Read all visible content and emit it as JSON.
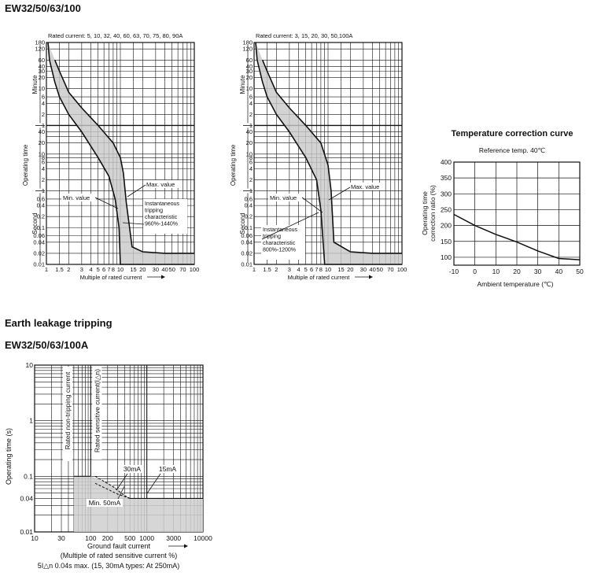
{
  "page": {
    "main_title": "EW32/50/63/100",
    "earth_heading": "Earth leakage tripping",
    "earth_model": "EW32/50/63/100A"
  },
  "chart_data": [
    {
      "type": "area",
      "title": "",
      "subtitle": "Rated current: 5, 10, 32, 40, 60, 63, 70, 75, 80, 90A",
      "xlabel": "Multiple of rated current",
      "ylabel": "Operating time",
      "y_scale": "log",
      "x_scale": "log",
      "xlim": [
        1,
        100
      ],
      "x_ticks": [
        "1",
        "1.5",
        "2",
        "3",
        "4",
        "5",
        "6",
        "7",
        "8",
        "10",
        "15",
        "20",
        "30",
        "40",
        "50",
        "70",
        "100"
      ],
      "y_unit_groups": [
        "Minute",
        "Second"
      ],
      "y_ticks_minute": [
        "180",
        "120",
        "60",
        "40",
        "30",
        "20",
        "10",
        "6",
        "4",
        "2",
        "1"
      ],
      "y_ticks_second": [
        "40",
        "20",
        "10",
        "8",
        "6",
        "4",
        "2",
        "1",
        "0.6",
        "0.4",
        "0.2",
        "0.1",
        "0.06",
        "0.04",
        "0.02",
        "0.01"
      ],
      "annotations": [
        "Max. value",
        "Min. value",
        "Instantaneous tripping characteristic 960%-1440%"
      ],
      "series": [
        {
          "name": "Max. value",
          "x": [
            1.3,
            1.5,
            2,
            3,
            5,
            8,
            10,
            11,
            12,
            14.4,
            20,
            40,
            100
          ],
          "y_seconds": [
            3600,
            1800,
            480,
            180,
            60,
            20,
            8,
            3,
            0.5,
            0.03,
            0.022,
            0.02,
            0.02
          ]
        },
        {
          "name": "Min. value",
          "x": [
            1.05,
            1.1,
            1.3,
            1.5,
            2,
            3,
            5,
            7,
            8.5,
            9.6,
            10,
            20,
            100
          ],
          "y_seconds": [
            10800,
            3600,
            900,
            360,
            120,
            40,
            8,
            2.5,
            0.6,
            0.1,
            0.01,
            0.01,
            0.01
          ]
        }
      ]
    },
    {
      "type": "area",
      "title": "",
      "subtitle": "Rated current: 3, 15, 20, 30, 50,100A",
      "xlabel": "Multiple of rated current",
      "ylabel": "Operating time",
      "y_scale": "log",
      "x_scale": "log",
      "xlim": [
        1,
        100
      ],
      "x_ticks": [
        "1",
        "1.5",
        "2",
        "3",
        "4",
        "5",
        "6",
        "7",
        "8",
        "10",
        "15",
        "20",
        "30",
        "40",
        "50",
        "70",
        "100"
      ],
      "y_unit_groups": [
        "Minute",
        "Second"
      ],
      "y_ticks_minute": [
        "180",
        "120",
        "60",
        "40",
        "30",
        "20",
        "10",
        "6",
        "4",
        "2",
        "1"
      ],
      "y_ticks_second": [
        "40",
        "20",
        "10",
        "8",
        "6",
        "4",
        "2",
        "1",
        "0.6",
        "0.4",
        "0.2",
        "0.1",
        "0.06",
        "0.04",
        "0.02",
        "0.01"
      ],
      "annotations": [
        "Max. value",
        "Min. value",
        "Instantaneous tripping characteristic 800%-1200%"
      ],
      "series": [
        {
          "name": "Max. value",
          "x": [
            1.3,
            1.5,
            2,
            3,
            5,
            8,
            10,
            11,
            12,
            20,
            40,
            100
          ],
          "y_seconds": [
            3600,
            1800,
            480,
            180,
            60,
            20,
            5,
            1,
            0.04,
            0.022,
            0.02,
            0.02
          ]
        },
        {
          "name": "Min. value",
          "x": [
            1.05,
            1.1,
            1.3,
            1.5,
            2,
            3,
            5,
            7,
            8,
            9,
            20,
            100
          ],
          "y_seconds": [
            10800,
            3600,
            900,
            360,
            120,
            40,
            8,
            2,
            0.3,
            0.01,
            0.01,
            0.01
          ]
        }
      ]
    },
    {
      "type": "line",
      "title": "Temperature correction curve",
      "subtitle": "Reference temp. 40℃",
      "xlabel": "Ambient temperature (℃)",
      "ylabel": "Operating time correction ratio (%)",
      "xlim": [
        -10,
        50
      ],
      "ylim": [
        75,
        400
      ],
      "x_ticks": [
        "-10",
        "0",
        "10",
        "20",
        "30",
        "40",
        "50"
      ],
      "y_ticks": [
        "400",
        "350",
        "300",
        "250",
        "200",
        "150",
        "100"
      ],
      "grid": true,
      "series": [
        {
          "x": [
            -10,
            0,
            10,
            20,
            30,
            40,
            50
          ],
          "y": [
            235,
            200,
            172,
            148,
            120,
            96,
            92
          ]
        }
      ]
    },
    {
      "type": "area",
      "title": "",
      "xlabel": "Ground fault current",
      "xlabel2": "(Multiple of rated sensitive current %)",
      "ylabel": "Operating time (s)",
      "x_scale": "log",
      "y_scale": "log",
      "xlim": [
        10,
        10000
      ],
      "ylim": [
        0.01,
        10
      ],
      "x_ticks": [
        "10",
        "30",
        "100",
        "200",
        "500",
        "1000",
        "3000",
        "10000"
      ],
      "y_ticks": [
        "10",
        "1",
        "0.1",
        "0.04",
        "0.01"
      ],
      "vertical_labels": [
        "Rated non-tripping current",
        "Rated sensitive current(I△n)"
      ],
      "annotations": [
        "30mA",
        "15mA",
        "Min. 50mA"
      ],
      "footnote": "5I△n  0.04s max. (15, 30mA types: At 250mA)",
      "series": [
        {
          "name": "Max. operating time",
          "x": [
            50,
            100,
            100,
            250,
            500,
            10000
          ],
          "y": [
            0.1,
            0.1,
            0.1,
            0.07,
            0.04,
            0.04
          ]
        },
        {
          "name": "Min. 50mA",
          "x": [
            100,
            10000
          ],
          "y": [
            0.01,
            0.01
          ]
        }
      ]
    }
  ]
}
